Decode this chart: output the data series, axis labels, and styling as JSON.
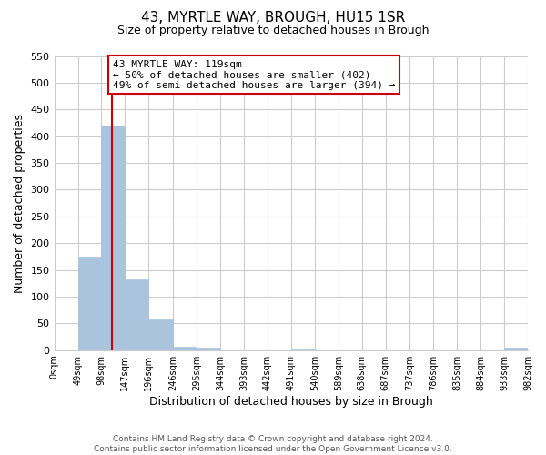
{
  "title": "43, MYRTLE WAY, BROUGH, HU15 1SR",
  "subtitle": "Size of property relative to detached houses in Brough",
  "xlabel": "Distribution of detached houses by size in Brough",
  "ylabel": "Number of detached properties",
  "footer_line1": "Contains HM Land Registry data © Crown copyright and database right 2024.",
  "footer_line2": "Contains public sector information licensed under the Open Government Licence v3.0.",
  "bar_edges": [
    0,
    49,
    98,
    147,
    196,
    246,
    295,
    344,
    393,
    442,
    491,
    540,
    589,
    638,
    687,
    737,
    786,
    835,
    884,
    933,
    982
  ],
  "bar_heights": [
    0,
    175,
    420,
    133,
    57,
    7,
    5,
    0,
    0,
    0,
    2,
    0,
    0,
    0,
    0,
    0,
    0,
    0,
    0,
    4
  ],
  "bar_color": "#aac4dd",
  "bar_edgecolor": "#aac4dd",
  "grid_color": "#cccccc",
  "ylim": [
    0,
    550
  ],
  "yticks": [
    0,
    50,
    100,
    150,
    200,
    250,
    300,
    350,
    400,
    450,
    500,
    550
  ],
  "x_tick_labels": [
    "0sqm",
    "49sqm",
    "98sqm",
    "147sqm",
    "196sqm",
    "246sqm",
    "295sqm",
    "344sqm",
    "393sqm",
    "442sqm",
    "491sqm",
    "540sqm",
    "589sqm",
    "638sqm",
    "687sqm",
    "737sqm",
    "786sqm",
    "835sqm",
    "884sqm",
    "933sqm",
    "982sqm"
  ],
  "property_line_x": 119,
  "property_line_color": "#cc0000",
  "annotation_line1": "43 MYRTLE WAY: 119sqm",
  "annotation_line2": "← 50% of detached houses are smaller (402)",
  "annotation_line3": "49% of semi-detached houses are larger (394) →",
  "annotation_box_edgecolor": "#cc0000",
  "annotation_box_facecolor": "#ffffff",
  "background_color": "#ffffff",
  "spine_color": "#cccccc"
}
